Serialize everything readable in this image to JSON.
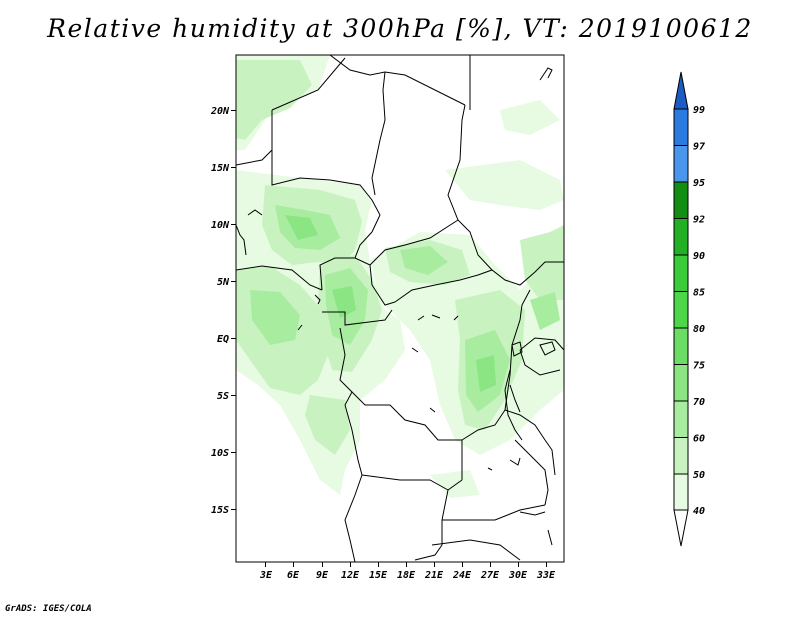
{
  "title": "Relative humidity at 300hPa [%], VT: 2019100612",
  "credit": "GrADS: IGES/COLA",
  "map": {
    "lat_labels": [
      "20N",
      "15N",
      "10N",
      "5N",
      "EQ",
      "5S",
      "10S",
      "15S"
    ],
    "lon_labels": [
      "3E",
      "6E",
      "9E",
      "12E",
      "15E",
      "18E",
      "21E",
      "24E",
      "27E",
      "30E",
      "33E"
    ]
  },
  "colorbar": {
    "labels": [
      "40",
      "50",
      "60",
      "70",
      "75",
      "80",
      "85",
      "90",
      "92",
      "95",
      "97",
      "99"
    ],
    "colors": {
      "40": "#e6fbe1",
      "50": "#c8f3c0",
      "60": "#a8eca0",
      "70": "#8ae582",
      "75": "#6cdd64",
      "80": "#4ed64a",
      "85": "#3ccb3a",
      "90": "#24b024",
      "92": "#128e12",
      "95": "#4a96ec",
      "97": "#2a7ae0",
      "99": "#1a5cc4"
    }
  }
}
